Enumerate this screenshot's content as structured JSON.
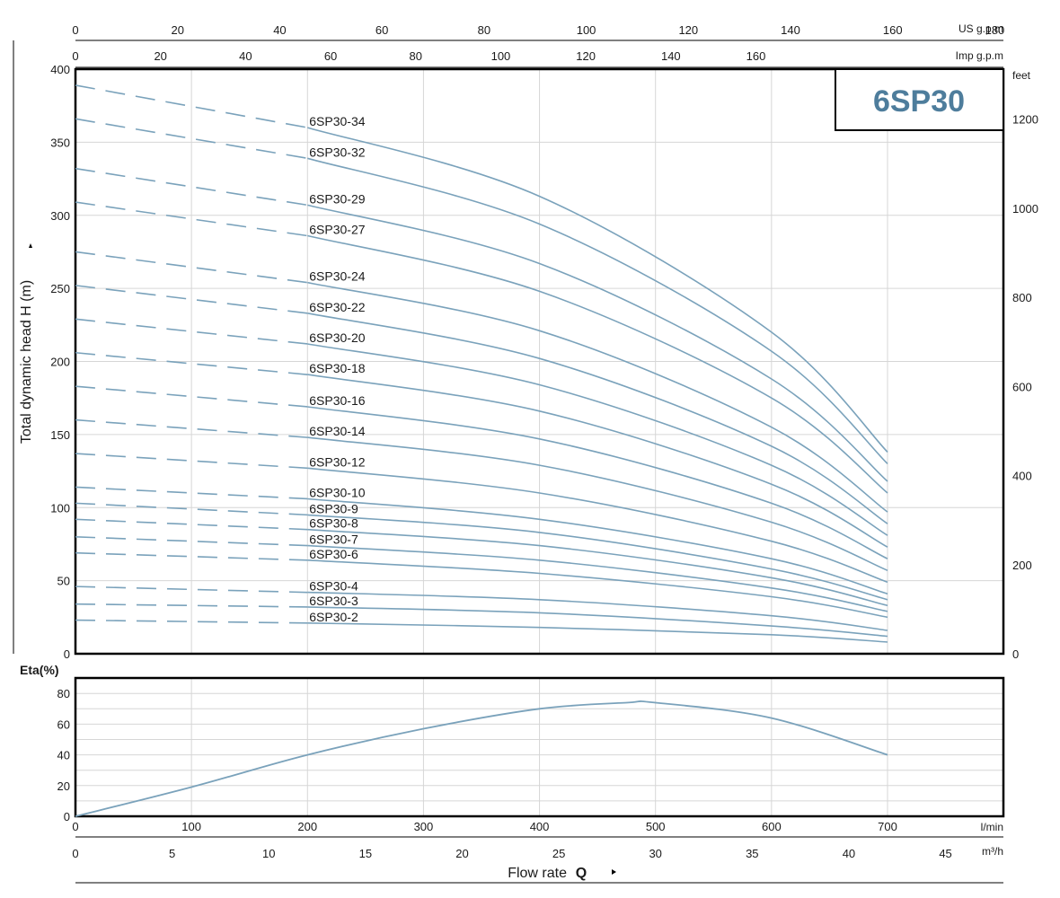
{
  "title": "6SP30",
  "colors": {
    "curve": "#7aa2bb",
    "grid": "#d6d6d6",
    "title": "#4e7d9c",
    "axis": "#000000"
  },
  "axes": {
    "head_ylabel": "Total dynamic head H (m)",
    "head_yticks": [
      "0",
      "50",
      "100",
      "150",
      "200",
      "250",
      "300",
      "350",
      "400"
    ],
    "feet_unit": "feet",
    "feet_ticks": [
      "0",
      "200",
      "400",
      "600",
      "800",
      "1000",
      "1200"
    ],
    "us_gpm_unit": "US g.p.m",
    "us_gpm_ticks": [
      "0",
      "20",
      "40",
      "60",
      "80",
      "100",
      "120",
      "140",
      "160",
      "180"
    ],
    "imp_gpm_unit": "Imp g.p.m",
    "imp_gpm_ticks": [
      "0",
      "20",
      "40",
      "60",
      "80",
      "100",
      "120",
      "140",
      "160"
    ],
    "eta_label": "Eta(%)",
    "eta_ticks": [
      "0",
      "20",
      "40",
      "60",
      "80"
    ],
    "lmin_unit": "l/min",
    "lmin_ticks": [
      "0",
      "100",
      "200",
      "300",
      "400",
      "500",
      "600",
      "700"
    ],
    "m3h_unit": "m³/h",
    "m3h_ticks": [
      "0",
      "5",
      "10",
      "15",
      "20",
      "25",
      "30",
      "35",
      "40",
      "45"
    ],
    "xlabel": "Flow rate",
    "xlabel_symbol": "Q"
  },
  "chart_data": [
    {
      "type": "line",
      "xlabel": "Flow rate Q (l/min)",
      "ylabel": "Total dynamic head H (m)",
      "xlim": [
        0,
        800
      ],
      "ylim": [
        0,
        400
      ],
      "recommended_range_start_lmin": 200,
      "series": [
        {
          "name": "6SP30-34",
          "x": [
            0,
            200,
            400,
            600,
            700
          ],
          "y": [
            389,
            360,
            313,
            220,
            138
          ]
        },
        {
          "name": "6SP30-32",
          "x": [
            0,
            200,
            400,
            600,
            700
          ],
          "y": [
            366,
            339,
            294,
            207,
            130
          ]
        },
        {
          "name": "6SP30-29",
          "x": [
            0,
            200,
            400,
            600,
            700
          ],
          "y": [
            332,
            307,
            267,
            188,
            118
          ]
        },
        {
          "name": "6SP30-27",
          "x": [
            0,
            200,
            400,
            600,
            700
          ],
          "y": [
            309,
            286,
            248,
            175,
            110
          ]
        },
        {
          "name": "6SP30-24",
          "x": [
            0,
            200,
            400,
            600,
            700
          ],
          "y": [
            275,
            254,
            221,
            155,
            97
          ]
        },
        {
          "name": "6SP30-22",
          "x": [
            0,
            200,
            400,
            600,
            700
          ],
          "y": [
            252,
            233,
            202,
            142,
            89
          ]
        },
        {
          "name": "6SP30-20",
          "x": [
            0,
            200,
            400,
            600,
            700
          ],
          "y": [
            229,
            212,
            184,
            129,
            81
          ]
        },
        {
          "name": "6SP30-18",
          "x": [
            0,
            200,
            400,
            600,
            700
          ],
          "y": [
            206,
            191,
            166,
            116,
            73
          ]
        },
        {
          "name": "6SP30-16",
          "x": [
            0,
            200,
            400,
            600,
            700
          ],
          "y": [
            183,
            169,
            147,
            103,
            65
          ]
        },
        {
          "name": "6SP30-14",
          "x": [
            0,
            200,
            400,
            600,
            700
          ],
          "y": [
            160,
            148,
            129,
            90,
            57
          ]
        },
        {
          "name": "6SP30-12",
          "x": [
            0,
            200,
            400,
            600,
            700
          ],
          "y": [
            137,
            127,
            110,
            77,
            49
          ]
        },
        {
          "name": "6SP30-10",
          "x": [
            0,
            200,
            400,
            600,
            700
          ],
          "y": [
            114,
            106,
            92,
            65,
            41
          ]
        },
        {
          "name": "6SP30-9",
          "x": [
            0,
            200,
            400,
            600,
            700
          ],
          "y": [
            103,
            95,
            83,
            58,
            37
          ]
        },
        {
          "name": "6SP30-8",
          "x": [
            0,
            200,
            400,
            600,
            700
          ],
          "y": [
            92,
            85,
            74,
            52,
            33
          ]
        },
        {
          "name": "6SP30-7",
          "x": [
            0,
            200,
            400,
            600,
            700
          ],
          "y": [
            80,
            74,
            64,
            45,
            29
          ]
        },
        {
          "name": "6SP30-6",
          "x": [
            0,
            200,
            400,
            600,
            700
          ],
          "y": [
            69,
            64,
            55,
            39,
            25
          ]
        },
        {
          "name": "6SP30-4",
          "x": [
            0,
            200,
            400,
            600,
            700
          ],
          "y": [
            46,
            42,
            37,
            26,
            16
          ]
        },
        {
          "name": "6SP30-3",
          "x": [
            0,
            200,
            400,
            600,
            700
          ],
          "y": [
            34,
            32,
            28,
            19,
            12
          ]
        },
        {
          "name": "6SP30-2",
          "x": [
            0,
            200,
            400,
            600,
            700
          ],
          "y": [
            23,
            21,
            18,
            13,
            8
          ]
        }
      ]
    },
    {
      "type": "line",
      "xlabel": "Flow rate Q (l/min)",
      "ylabel": "Eta(%)",
      "xlim": [
        0,
        800
      ],
      "ylim": [
        0,
        90
      ],
      "series": [
        {
          "name": "Eta",
          "x": [
            0,
            100,
            200,
            300,
            400,
            475,
            500,
            600,
            700
          ],
          "y": [
            0,
            19,
            40,
            57,
            70,
            74,
            74,
            64,
            40
          ]
        }
      ]
    }
  ]
}
